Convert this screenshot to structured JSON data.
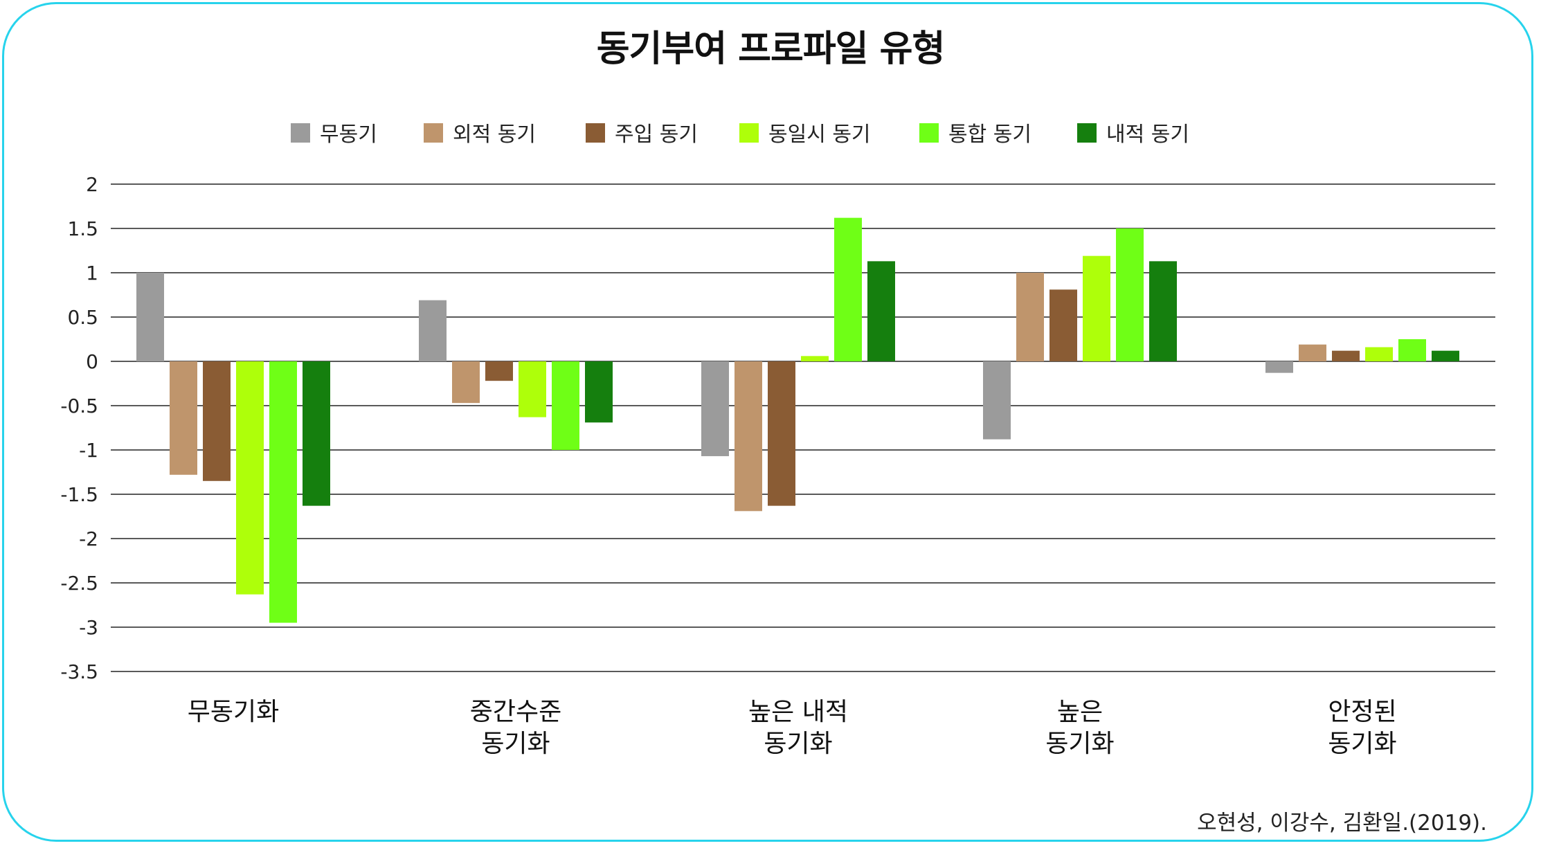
{
  "title": "동기부여 프로파일 유형",
  "source": "오현성, 이강수, 김환일.(2019).",
  "chart_data": {
    "type": "bar",
    "title": "동기부여 프로파일 유형",
    "categories": [
      [
        "무동기화"
      ],
      [
        "중간수준",
        "동기화"
      ],
      [
        "높은 내적",
        "동기화"
      ],
      [
        "높은",
        "동기화"
      ],
      [
        "안정된",
        "동기화"
      ]
    ],
    "series": [
      {
        "name": "무동기",
        "color": "#9b9b9b",
        "values": [
          1.0,
          0.69,
          -1.07,
          -0.88,
          -0.13
        ]
      },
      {
        "name": "외적 동기",
        "color": "#bf956c",
        "values": [
          -1.28,
          -0.47,
          -1.69,
          1.0,
          0.19
        ]
      },
      {
        "name": "주입 동기",
        "color": "#8a5c34",
        "values": [
          -1.35,
          -0.22,
          -1.63,
          0.81,
          0.12
        ]
      },
      {
        "name": "동일시 동기",
        "color": "#aeff0a",
        "values": [
          -2.63,
          -0.63,
          0.06,
          1.19,
          0.16
        ]
      },
      {
        "name": "통합 동기",
        "color": "#6fff16",
        "values": [
          -2.95,
          -1.0,
          1.62,
          1.5,
          0.25
        ]
      },
      {
        "name": "내적 동기",
        "color": "#157f0e",
        "values": [
          -1.63,
          -0.69,
          1.13,
          1.13,
          0.12
        ]
      }
    ],
    "yticks": [
      "2",
      "1.5",
      "1",
      "0.5",
      "0",
      "-0.5",
      "-1",
      "-1.5",
      "-2",
      "-2.5",
      "-3",
      "-3.5"
    ],
    "ylim": [
      -3.5,
      2
    ],
    "grid": true,
    "legend": "top"
  }
}
